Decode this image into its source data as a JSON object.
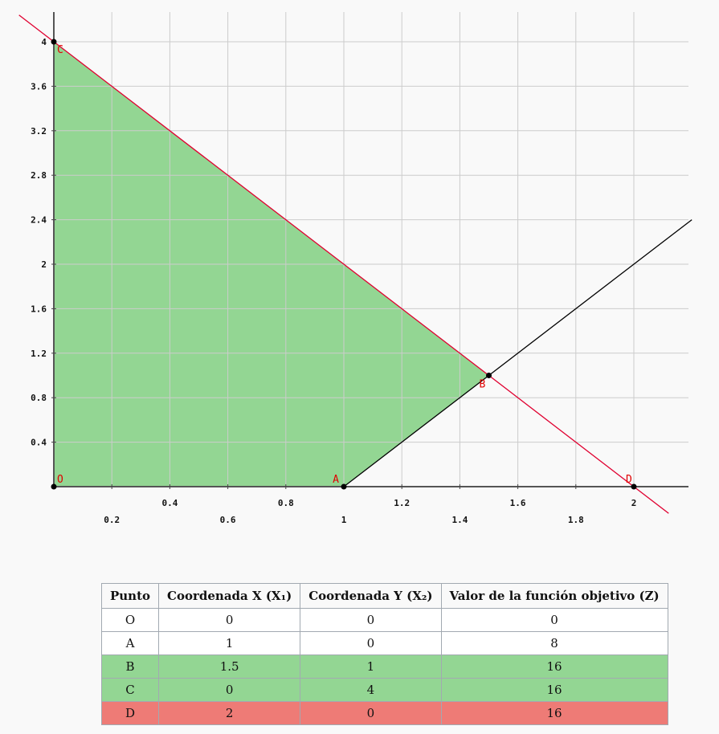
{
  "chart_data": {
    "type": "line",
    "xlim": [
      0,
      2.2
    ],
    "ylim": [
      0,
      4.2
    ],
    "x_ticks": [
      "0.2",
      "0.4",
      "0.6",
      "0.8",
      "1",
      "1.2",
      "1.4",
      "1.6",
      "1.8",
      "2"
    ],
    "y_ticks": [
      "0.4",
      "0.8",
      "1.2",
      "1.6",
      "2",
      "2.4",
      "2.8",
      "3.2",
      "3.6",
      "4"
    ],
    "grid": true,
    "feasible_region": [
      [
        0,
        0
      ],
      [
        1,
        0
      ],
      [
        1.5,
        1
      ],
      [
        0,
        4
      ]
    ],
    "feasible_color": "#93d693",
    "constraint_lines": [
      {
        "color": "#e00030",
        "points": [
          [
            -0.12,
            4.24
          ],
          [
            2.12,
            -0.24
          ]
        ]
      },
      {
        "color": "#000000",
        "points": [
          [
            1,
            0
          ],
          [
            2.2,
            2.4
          ]
        ]
      }
    ],
    "points": [
      {
        "label": "O",
        "x": 0,
        "y": 0
      },
      {
        "label": "A",
        "x": 1,
        "y": 0
      },
      {
        "label": "B",
        "x": 1.5,
        "y": 1
      },
      {
        "label": "C",
        "x": 0,
        "y": 4
      },
      {
        "label": "D",
        "x": 2,
        "y": 0
      }
    ]
  },
  "table": {
    "headers": [
      "Punto",
      "Coordenada X (X₁)",
      "Coordenada Y (X₂)",
      "Valor de la función objetivo (Z)"
    ],
    "rows": [
      {
        "punto": "O",
        "x": "0",
        "y": "0",
        "z": "0",
        "status": "normal"
      },
      {
        "punto": "A",
        "x": "1",
        "y": "0",
        "z": "8",
        "status": "normal"
      },
      {
        "punto": "B",
        "x": "1.5",
        "y": "1",
        "z": "16",
        "status": "optimal"
      },
      {
        "punto": "C",
        "x": "0",
        "y": "4",
        "z": "16",
        "status": "optimal"
      },
      {
        "punto": "D",
        "x": "2",
        "y": "0",
        "z": "16",
        "status": "infeasible"
      }
    ]
  },
  "colors": {
    "optimal": "#93d693",
    "infeasible": "#ee7b76",
    "grid": "#cccccc"
  }
}
